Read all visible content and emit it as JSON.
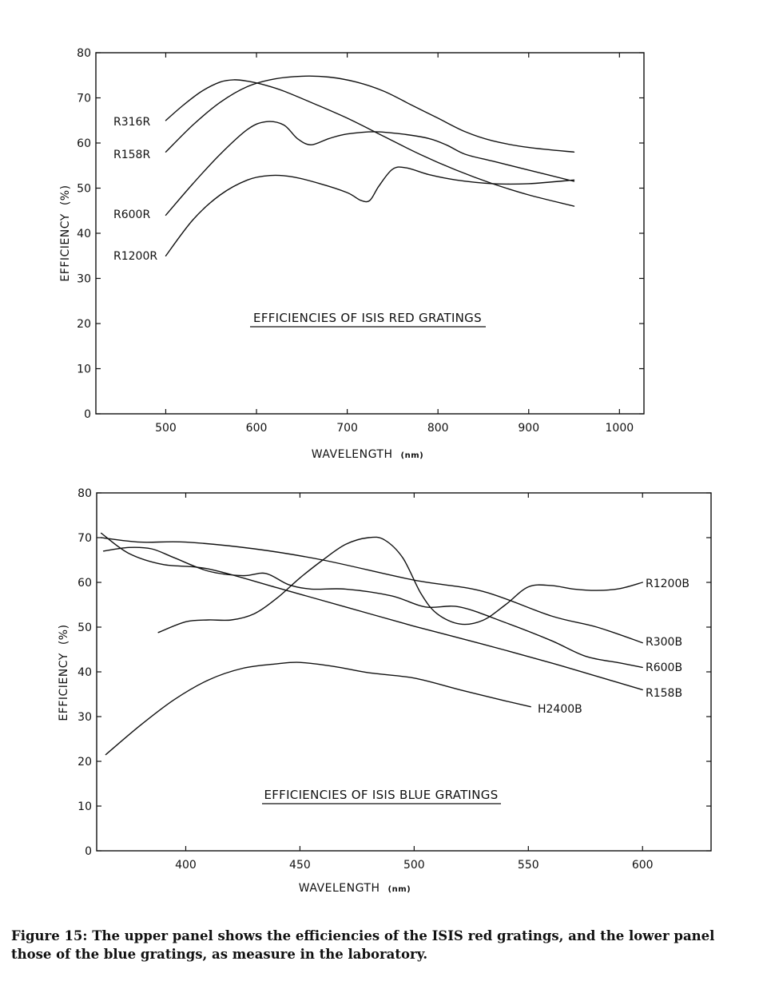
{
  "chart_data": [
    {
      "type": "line",
      "title": "EFFICIENCIES OF ISIS RED GRATINGS",
      "xlabel": "WAVELENGTH",
      "xlabel_unit": "(nm)",
      "ylabel": "EFFICIENCY",
      "ylabel_unit": "(%)",
      "xlim": [
        423,
        1027
      ],
      "ylim": [
        0,
        80
      ],
      "xticks": [
        500,
        600,
        700,
        800,
        900,
        1000
      ],
      "yticks": [
        0,
        10,
        20,
        30,
        40,
        50,
        60,
        70,
        80
      ],
      "grid": false,
      "series": [
        {
          "name": "R316R",
          "x": [
            500,
            520,
            540,
            560,
            575,
            590,
            610,
            630,
            660,
            700,
            740,
            780,
            820,
            860,
            900,
            950
          ],
          "y": [
            65,
            68.5,
            71.5,
            73.5,
            74,
            73.7,
            72.8,
            71.5,
            69,
            65.5,
            61.5,
            57.5,
            54,
            51,
            48.5,
            46
          ]
        },
        {
          "name": "R158R",
          "x": [
            500,
            530,
            560,
            590,
            620,
            650,
            680,
            710,
            740,
            770,
            800,
            830,
            860,
            900,
            950
          ],
          "y": [
            58,
            64,
            69,
            72.5,
            74.2,
            74.8,
            74.6,
            73.5,
            71.5,
            68.5,
            65.5,
            62.5,
            60.5,
            59,
            58
          ]
        },
        {
          "name": "R600R",
          "x": [
            500,
            530,
            560,
            590,
            610,
            630,
            645,
            660,
            680,
            700,
            730,
            760,
            790,
            810,
            830,
            860,
            900,
            950
          ],
          "y": [
            44,
            51,
            57.5,
            63,
            64.7,
            64,
            61,
            59.6,
            61,
            62,
            62.5,
            62,
            61,
            59.5,
            57.5,
            56,
            54,
            51.5
          ]
        },
        {
          "name": "R1200R",
          "x": [
            500,
            530,
            560,
            590,
            615,
            640,
            670,
            700,
            715,
            725,
            735,
            750,
            765,
            790,
            820,
            860,
            900,
            950
          ],
          "y": [
            35,
            43,
            48.5,
            51.8,
            52.8,
            52.5,
            51,
            49,
            47.3,
            47.3,
            50.5,
            54.2,
            54.5,
            53,
            51.8,
            51,
            51,
            51.8
          ]
        }
      ],
      "annotations": []
    },
    {
      "type": "line",
      "title": "EFFICIENCIES OF ISIS BLUE GRATINGS",
      "xlabel": "WAVELENGTH",
      "xlabel_unit": "(nm)",
      "ylabel": "EFFICIENCY",
      "ylabel_unit": "(%)",
      "xlim": [
        361,
        630
      ],
      "ylim": [
        0,
        80
      ],
      "xticks": [
        400,
        450,
        500,
        550,
        600
      ],
      "yticks": [
        0,
        10,
        20,
        30,
        40,
        50,
        60,
        70,
        80
      ],
      "grid": false,
      "series": [
        {
          "name": "R1200B",
          "x": [
            388,
            400,
            410,
            420,
            430,
            440,
            450,
            460,
            470,
            480,
            487,
            495,
            503,
            510,
            520,
            530,
            540,
            550,
            560,
            570,
            580,
            590,
            600
          ],
          "y": [
            48.8,
            51.2,
            51.6,
            51.6,
            53,
            56.5,
            61,
            65,
            68.5,
            70,
            69.5,
            65.5,
            57.5,
            53,
            50.7,
            51.5,
            55,
            59,
            59.3,
            58.5,
            58.2,
            58.6,
            60
          ]
        },
        {
          "name": "R300B",
          "x": [
            363,
            380,
            400,
            430,
            460,
            500,
            530,
            560,
            580,
            600
          ],
          "y": [
            70,
            69,
            69,
            67.5,
            65,
            60.5,
            58,
            52.5,
            50,
            46.5
          ]
        },
        {
          "name": "R600B",
          "x": [
            364,
            375,
            385,
            395,
            410,
            425,
            435,
            445,
            455,
            470,
            490,
            505,
            520,
            540,
            560,
            575,
            590,
            600
          ],
          "y": [
            67,
            67.8,
            67.5,
            65.5,
            62.5,
            61.5,
            62,
            59.5,
            58.5,
            58.5,
            57,
            54.5,
            54.5,
            51,
            47,
            43.5,
            42,
            41
          ]
        },
        {
          "name": "R158B",
          "x": [
            363,
            375,
            390,
            410,
            440,
            470,
            500,
            530,
            560,
            580,
            600
          ],
          "y": [
            71,
            66.5,
            64,
            63,
            58.8,
            54.5,
            50.2,
            46.2,
            42,
            39,
            36
          ]
        },
        {
          "name": "H2400B",
          "x": [
            365,
            380,
            395,
            410,
            425,
            440,
            450,
            465,
            480,
            500,
            520,
            540,
            551
          ],
          "y": [
            21.5,
            28,
            33.8,
            38.2,
            40.8,
            41.8,
            42.1,
            41.2,
            39.8,
            38.6,
            36,
            33.5,
            32.2
          ]
        }
      ],
      "annotations": []
    }
  ],
  "caption": {
    "line1": "Figure 15: The upper panel shows the efficiencies of the ISIS red gratings, and the lower panel",
    "line2": "those of the blue gratings, as measure in the laboratory."
  }
}
